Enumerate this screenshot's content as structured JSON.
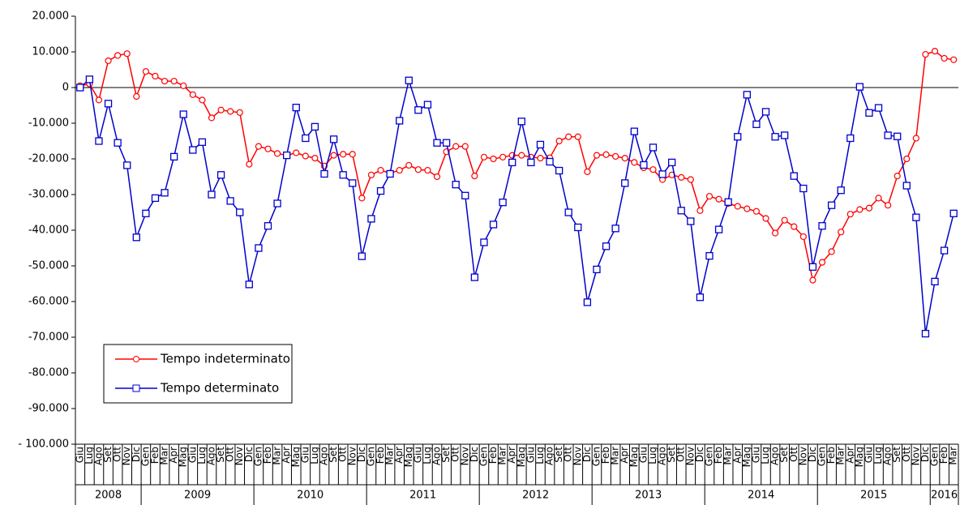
{
  "chart_data": {
    "type": "line",
    "categories": [
      "Giu",
      "Lug",
      "Ago",
      "Set",
      "Ott",
      "Nov",
      "Dic",
      "Gen",
      "Feb",
      "Mar",
      "Apr",
      "Mag",
      "Giu",
      "Lug",
      "Ago",
      "Set",
      "Ott",
      "Nov",
      "Dic",
      "Gen",
      "Feb",
      "Mar",
      "Apr",
      "Mag",
      "Giu",
      "Lug",
      "Ago",
      "Set",
      "Ott",
      "Nov",
      "Dic",
      "Gen",
      "Feb",
      "Mar",
      "Apr",
      "Mag",
      "Giu",
      "Lug",
      "Ago",
      "Set",
      "Ott",
      "Nov",
      "Dic",
      "Gen",
      "Feb",
      "Mar",
      "Apr",
      "Mag",
      "Giu",
      "Lug",
      "Ago",
      "Set",
      "Ott",
      "Nov",
      "Dic",
      "Gen",
      "Feb",
      "Mar",
      "Apr",
      "Mag",
      "Giu",
      "Lug",
      "Ago",
      "Set",
      "Ott",
      "Nov",
      "Dic",
      "Gen",
      "Feb",
      "Mar",
      "Apr",
      "Mag",
      "Giu",
      "Lug",
      "Ago",
      "Set",
      "Ott",
      "Nov",
      "Dic",
      "Gen",
      "Feb",
      "Mar",
      "Apr",
      "Mag",
      "Giu",
      "Lug",
      "Ago",
      "Set",
      "Ott",
      "Nov",
      "Dic",
      "Gen",
      "Feb",
      "Mar"
    ],
    "years": [
      "2008",
      "2009",
      "2010",
      "2011",
      "2012",
      "2013",
      "2014",
      "2015",
      "2016"
    ],
    "series": [
      {
        "name": "Tempo indeterminato",
        "color": "#ff0000",
        "marker": "circle",
        "values": [
          500,
          1000,
          -3500,
          7500,
          9000,
          9500,
          -2500,
          4500,
          3200,
          1800,
          1800,
          500,
          -2000,
          -3500,
          -8500,
          -6300,
          -6700,
          -7000,
          -21500,
          -16500,
          -17200,
          -18500,
          -19000,
          -18300,
          -19200,
          -19800,
          -22000,
          -19000,
          -18700,
          -18700,
          -31000,
          -24500,
          -23200,
          -24000,
          -23200,
          -21800,
          -23000,
          -23200,
          -25000,
          -18000,
          -16500,
          -16500,
          -24800,
          -19500,
          -20000,
          -19500,
          -19000,
          -19000,
          -19500,
          -19800,
          -19700,
          -15000,
          -13800,
          -13800,
          -23600,
          -19000,
          -18800,
          -19300,
          -19800,
          -21000,
          -22500,
          -23000,
          -25800,
          -24500,
          -25200,
          -25800,
          -34500,
          -30500,
          -31300,
          -32500,
          -33300,
          -34000,
          -34700,
          -36700,
          -40800,
          -37200,
          -39000,
          -41800,
          -54000,
          -49000,
          -46000,
          -40500,
          -35500,
          -34200,
          -33800,
          -31000,
          -33000,
          -24800,
          -20000,
          -14200,
          9300,
          10200,
          8200,
          7800
        ]
      },
      {
        "name": "Tempo determinato",
        "color": "#0000cc",
        "marker": "square",
        "values": [
          0,
          2300,
          -15000,
          -4500,
          -15500,
          -21800,
          -42000,
          -35300,
          -31000,
          -29500,
          -19400,
          -7500,
          -17500,
          -15300,
          -30000,
          -24500,
          -31800,
          -35000,
          -55200,
          -45000,
          -38800,
          -32500,
          -19000,
          -5600,
          -14200,
          -11000,
          -24200,
          -14500,
          -24500,
          -26800,
          -47300,
          -36800,
          -29000,
          -24200,
          -9300,
          2000,
          -6300,
          -4800,
          -15500,
          -15500,
          -27200,
          -30300,
          -53200,
          -43400,
          -38400,
          -32200,
          -21000,
          -9500,
          -21000,
          -16000,
          -20800,
          -23300,
          -35000,
          -39200,
          -60200,
          -51000,
          -44500,
          -39500,
          -26800,
          -12300,
          -21700,
          -16800,
          -24300,
          -21000,
          -34500,
          -37500,
          -58800,
          -47200,
          -39800,
          -32100,
          -13800,
          -2000,
          -10300,
          -6800,
          -13800,
          -13400,
          -24800,
          -28300,
          -50300,
          -38800,
          -33000,
          -28800,
          -14200,
          200,
          -7100,
          -5700,
          -13400,
          -13700,
          -27500,
          -36400,
          -69000,
          -54400,
          -45700,
          -35300
        ]
      }
    ],
    "ylim": [
      -100000,
      20000
    ],
    "yticks": [
      {
        "value": 20000,
        "label": "20.000"
      },
      {
        "value": 10000,
        "label": "10.000"
      },
      0,
      {
        "value": -10000,
        "label": "-10.000"
      },
      {
        "value": -20000,
        "label": "-20.000"
      },
      {
        "value": -30000,
        "label": "-30.000"
      },
      {
        "value": -40000,
        "label": "-40.000"
      },
      {
        "value": -50000,
        "label": "-50.000"
      },
      {
        "value": -60000,
        "label": "-60.000"
      },
      {
        "value": -70000,
        "label": "-70.000"
      },
      {
        "value": -80000,
        "label": "-80.000"
      },
      {
        "value": -90000,
        "label": "-90.000"
      },
      {
        "value": -100000,
        "label": "- 100.000"
      }
    ],
    "grid": false,
    "legend": "lower left"
  }
}
